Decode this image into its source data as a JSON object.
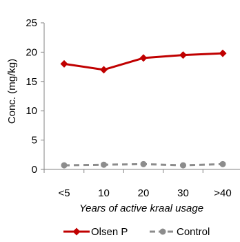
{
  "chart_data": {
    "type": "line",
    "categories": [
      "<5",
      "10",
      "20",
      "30",
      ">40"
    ],
    "series": [
      {
        "name": "Olsen P",
        "values": [
          18.0,
          17.0,
          19.0,
          19.5,
          19.8
        ],
        "color": "#c00000",
        "style": "solid",
        "marker": "diamond"
      },
      {
        "name": "Control",
        "values": [
          0.7,
          0.8,
          0.9,
          0.7,
          0.9
        ],
        "color": "#8c8c8c",
        "style": "dashed",
        "marker": "circle"
      }
    ],
    "xlabel": "Years of active kraal usage",
    "ylabel": "Conc. (mg/kg)",
    "ylim": [
      0,
      25
    ],
    "yticks": [
      0,
      5,
      10,
      15,
      20,
      25
    ],
    "grid": false,
    "legend_position": "bottom"
  }
}
